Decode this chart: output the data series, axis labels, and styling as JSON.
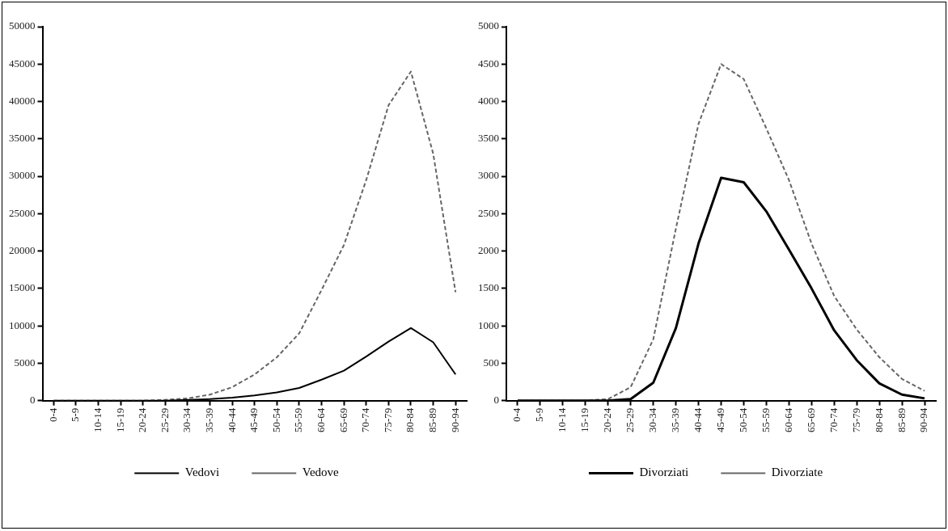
{
  "chart_data": [
    {
      "type": "line",
      "categories": [
        "0-4",
        "5-9",
        "10-14",
        "15-19",
        "20-24",
        "25-29",
        "30-34",
        "35-39",
        "40-44",
        "45-49",
        "50-54",
        "55-59",
        "60-64",
        "65-69",
        "70-74",
        "75-79",
        "80-84",
        "85-89",
        "90-94"
      ],
      "series": [
        {
          "name": "Vedovi",
          "color": "#000000",
          "line_style": "solid",
          "values": [
            0,
            0,
            0,
            0,
            0,
            0,
            100,
            200,
            400,
            700,
            1100,
            1700,
            2800,
            4000,
            5900,
            7900,
            9700,
            7800,
            3500
          ]
        },
        {
          "name": "Vedove",
          "color": "#666666",
          "line_style": "dashed",
          "values": [
            0,
            0,
            0,
            0,
            0,
            100,
            300,
            800,
            1800,
            3500,
            5800,
            9000,
            14800,
            20800,
            29500,
            39500,
            44000,
            33000,
            14500
          ]
        }
      ],
      "ylim": [
        0,
        50000
      ],
      "yticks": [
        0,
        5000,
        10000,
        15000,
        20000,
        25000,
        30000,
        35000,
        40000,
        45000,
        50000
      ],
      "grid": false,
      "legend": "bottom",
      "marker": "none"
    },
    {
      "type": "line",
      "categories": [
        "0-4",
        "5-9",
        "10-14",
        "15-19",
        "20-24",
        "25-29",
        "30-34",
        "35-39",
        "40-44",
        "45-49",
        "50-54",
        "55-59",
        "60-64",
        "65-69",
        "70-74",
        "75-79",
        "80-84",
        "85-89",
        "90-94"
      ],
      "series": [
        {
          "name": "Divorziati",
          "color": "#000000",
          "line_style": "solid",
          "values": [
            0,
            0,
            0,
            0,
            0,
            20,
            240,
            970,
            2100,
            2980,
            2920,
            2530,
            2020,
            1500,
            940,
            540,
            230,
            80,
            30
          ]
        },
        {
          "name": "Divorziate",
          "color": "#666666",
          "line_style": "dashed",
          "values": [
            0,
            0,
            0,
            0,
            20,
            180,
            820,
            2300,
            3700,
            4500,
            4300,
            3640,
            2950,
            2100,
            1400,
            950,
            580,
            290,
            130
          ]
        }
      ],
      "ylim": [
        0,
        5000
      ],
      "yticks": [
        0,
        500,
        1000,
        1500,
        2000,
        2500,
        3000,
        3500,
        4000,
        4500,
        5000
      ],
      "grid": false,
      "legend": "bottom",
      "marker": "none"
    }
  ]
}
